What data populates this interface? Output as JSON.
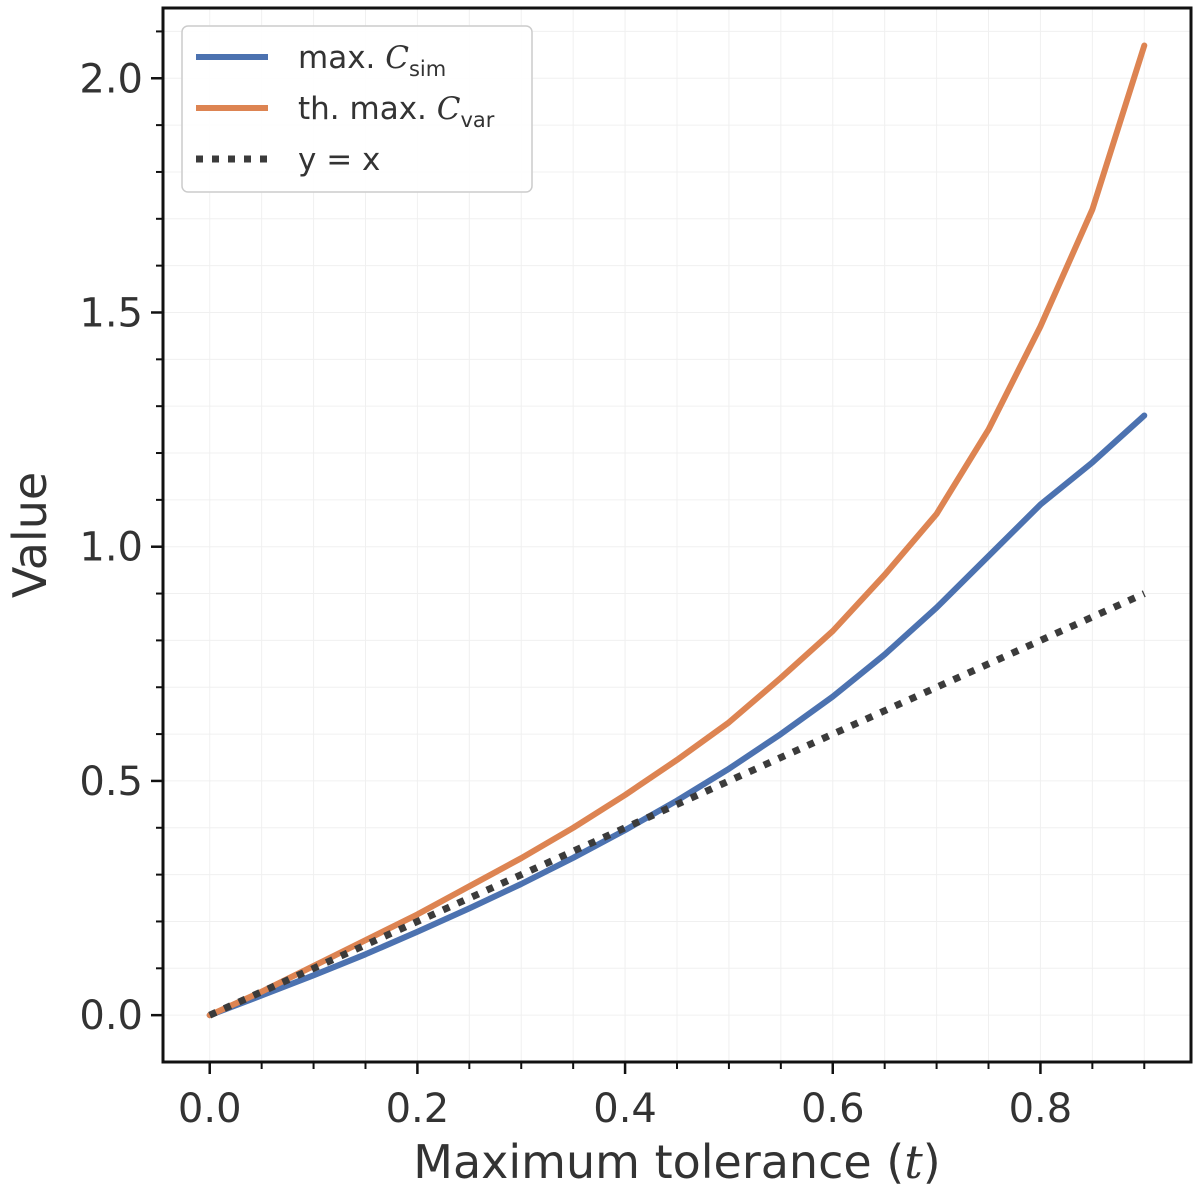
{
  "chart_data": {
    "type": "line",
    "xlabel": "Maximum tolerance (t)",
    "xlabel_parts": {
      "prefix": "Maximum tolerance (",
      "var": "t",
      "suffix": ")"
    },
    "ylabel": "Value",
    "xlim": [
      -0.045,
      0.945
    ],
    "ylim": [
      -0.1,
      2.15
    ],
    "x_ticks": [
      0.0,
      0.2,
      0.4,
      0.6,
      0.8
    ],
    "x_tick_labels": [
      "0.0",
      "0.2",
      "0.4",
      "0.6",
      "0.8"
    ],
    "y_ticks": [
      0.0,
      0.5,
      1.0,
      1.5,
      2.0
    ],
    "y_tick_labels": [
      "0.0",
      "0.5",
      "1.0",
      "1.5",
      "2.0"
    ],
    "grid": true,
    "legend_position": "top-left",
    "series": [
      {
        "name": "max. C_sim",
        "label_prefix": "max. ",
        "label_symbol": "C",
        "label_sub": "sim",
        "color": "#4c72b0",
        "style": "solid",
        "x": [
          0.0,
          0.05,
          0.1,
          0.15,
          0.2,
          0.25,
          0.3,
          0.35,
          0.4,
          0.45,
          0.5,
          0.55,
          0.6,
          0.65,
          0.7,
          0.75,
          0.8,
          0.85,
          0.9
        ],
        "y": [
          0.0,
          0.042,
          0.085,
          0.13,
          0.178,
          0.228,
          0.28,
          0.336,
          0.395,
          0.458,
          0.526,
          0.6,
          0.68,
          0.77,
          0.87,
          0.98,
          1.09,
          1.18,
          1.28
        ]
      },
      {
        "name": "th. max. C_var",
        "label_prefix": "th. max. ",
        "label_symbol": "C",
        "label_sub": "var",
        "color": "#dd8452",
        "style": "solid",
        "x": [
          0.0,
          0.05,
          0.1,
          0.15,
          0.2,
          0.25,
          0.3,
          0.35,
          0.4,
          0.45,
          0.5,
          0.55,
          0.6,
          0.65,
          0.7,
          0.75,
          0.8,
          0.85,
          0.9
        ],
        "y": [
          0.0,
          0.05,
          0.105,
          0.16,
          0.215,
          0.275,
          0.335,
          0.4,
          0.47,
          0.545,
          0.625,
          0.72,
          0.82,
          0.94,
          1.07,
          1.25,
          1.47,
          1.72,
          2.07
        ]
      },
      {
        "name": "y = x",
        "label_prefix": "y = x",
        "label_symbol": "",
        "label_sub": "",
        "color": "#3b3b3b",
        "style": "dotted",
        "x": [
          0.0,
          0.9
        ],
        "y": [
          0.0,
          0.9
        ]
      }
    ]
  }
}
